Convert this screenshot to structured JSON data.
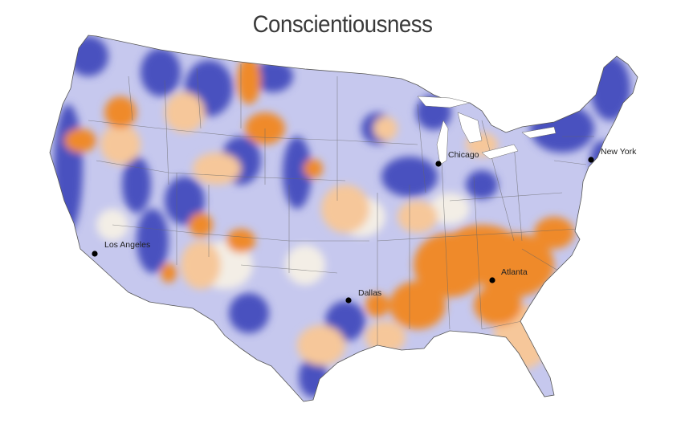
{
  "title": "Conscientiousness",
  "colors": {
    "high": "#ef8a2c",
    "mid_high": "#f6c79a",
    "neutral": "#f3eee6",
    "mid_low": "#b9bde8",
    "low": "#4a51bf",
    "state_border": "#666666"
  },
  "cities": [
    {
      "name": "Chicago",
      "icon": "city-dot-icon"
    },
    {
      "name": "New York",
      "icon": "city-dot-icon"
    },
    {
      "name": "Los Angeles",
      "icon": "city-dot-icon"
    },
    {
      "name": "Dallas",
      "icon": "city-dot-icon"
    },
    {
      "name": "Atlanta",
      "icon": "city-dot-icon"
    }
  ]
}
